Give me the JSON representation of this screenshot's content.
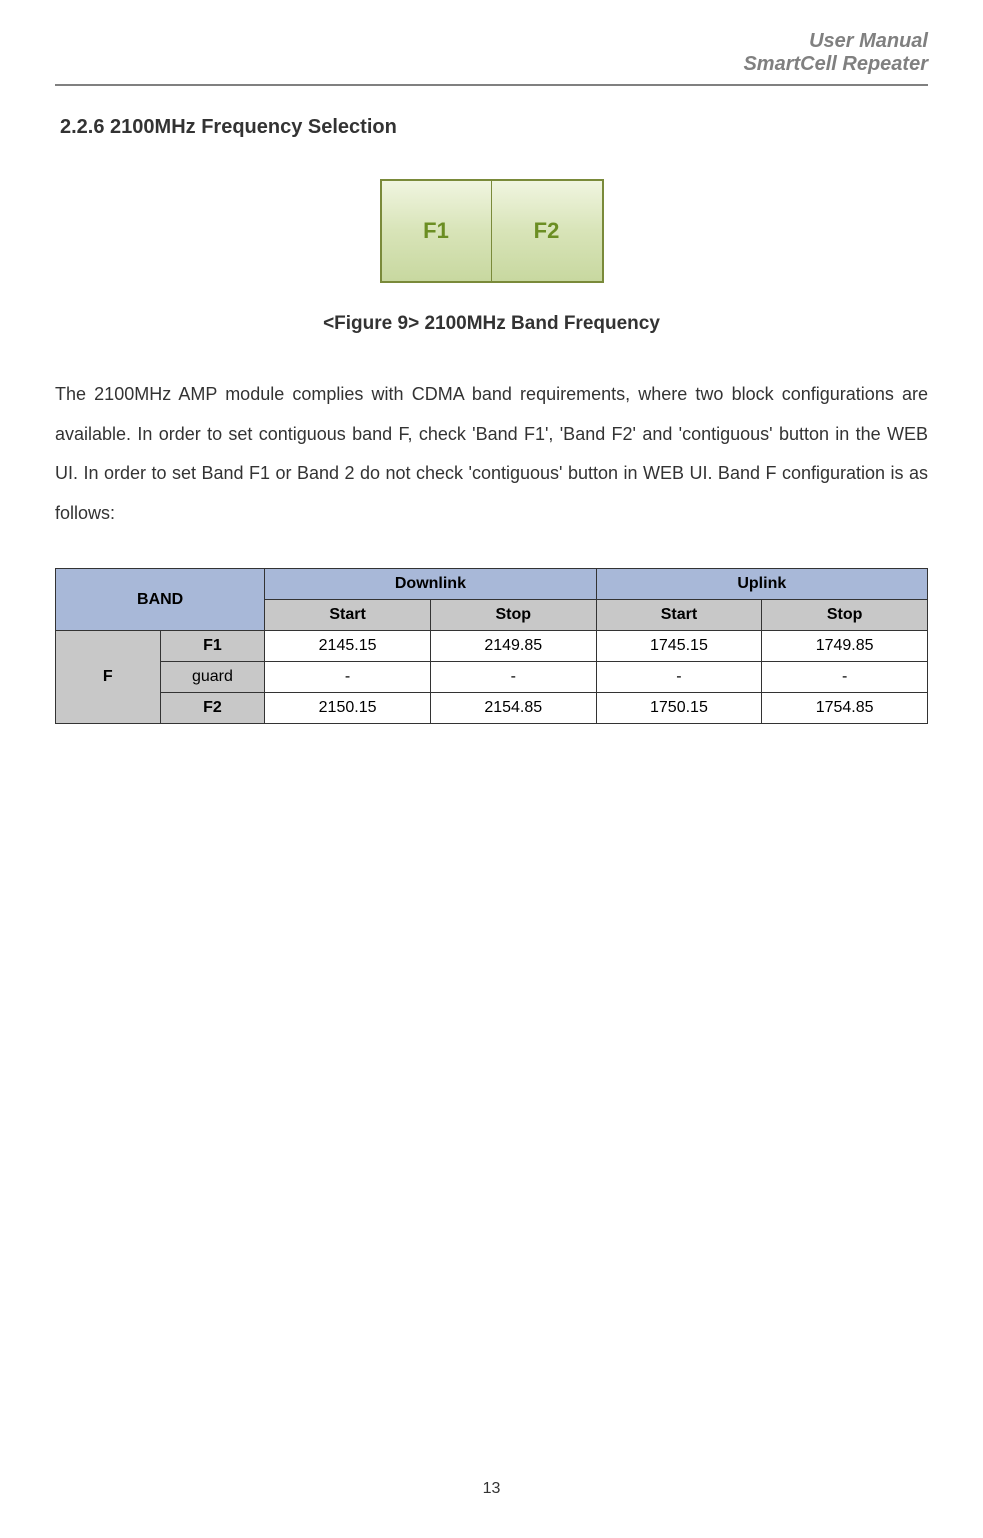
{
  "header": {
    "line1": "User Manual",
    "line2": "SmartCell Repeater"
  },
  "section": {
    "heading": "2.2.6 2100MHz Frequency Selection"
  },
  "figure": {
    "buttons": [
      "F1",
      "F2"
    ],
    "button_color": "#6b8e23",
    "button_bg_gradient": [
      "#f0f5e0",
      "#d8e4b8",
      "#c8d8a0"
    ],
    "border_color": "#7a8a3a",
    "caption": "<Figure 9> 2100MHz Band Frequency"
  },
  "paragraph": {
    "text": "The 2100MHz AMP module complies with CDMA band requirements, where two block configurations are available. In order to set contiguous band F, check 'Band F1', 'Band F2' and 'contiguous' button in the WEB UI. In order to set Band F1 or Band 2 do not check 'contiguous' button in WEB UI.  Band F configuration is as follows:"
  },
  "table": {
    "header_bg_primary": "#a8b8d8",
    "header_bg_secondary": "#c8c8c8",
    "border_color": "#333333",
    "columns": {
      "band": "BAND",
      "downlink": "Downlink",
      "uplink": "Uplink",
      "start": "Start",
      "stop": "Stop"
    },
    "band_label": "F",
    "rows": [
      {
        "subband": "F1",
        "subband_bold": true,
        "dl_start": "2145.15",
        "dl_stop": "2149.85",
        "ul_start": "1745.15",
        "ul_stop": "1749.85"
      },
      {
        "subband": "guard",
        "subband_bold": false,
        "dl_start": "-",
        "dl_stop": "-",
        "ul_start": "-",
        "ul_stop": "-"
      },
      {
        "subband": "F2",
        "subband_bold": true,
        "dl_start": "2150.15",
        "dl_stop": "2154.85",
        "ul_start": "1750.15",
        "ul_stop": "1754.85"
      }
    ]
  },
  "page_number": "13"
}
